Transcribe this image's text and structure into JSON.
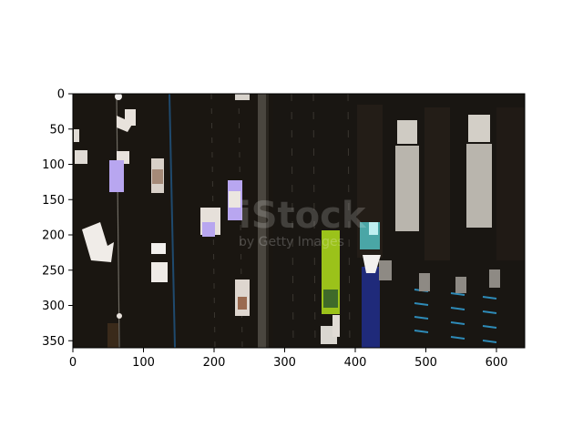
{
  "axes": {
    "x_ticks": [
      "0",
      "100",
      "200",
      "300",
      "400",
      "500",
      "600"
    ],
    "y_ticks": [
      "0",
      "50",
      "100",
      "150",
      "200",
      "250",
      "300",
      "350"
    ],
    "x_range": [
      0,
      640
    ],
    "y_range": [
      0,
      360
    ]
  },
  "watermark": {
    "main": "iStock",
    "sub": "by Getty Images"
  },
  "colors": {
    "asphalt": "#1b1712",
    "lane_line": "#8a8578",
    "median_blue": "#1f4a6e",
    "green_truck": "#9bc21a",
    "blue_truck": "#1f2a7a",
    "mask_white": "#f2f0ee",
    "mask_lavender": "#b8a6f0",
    "mask_cyan": "#7fd6d6"
  }
}
